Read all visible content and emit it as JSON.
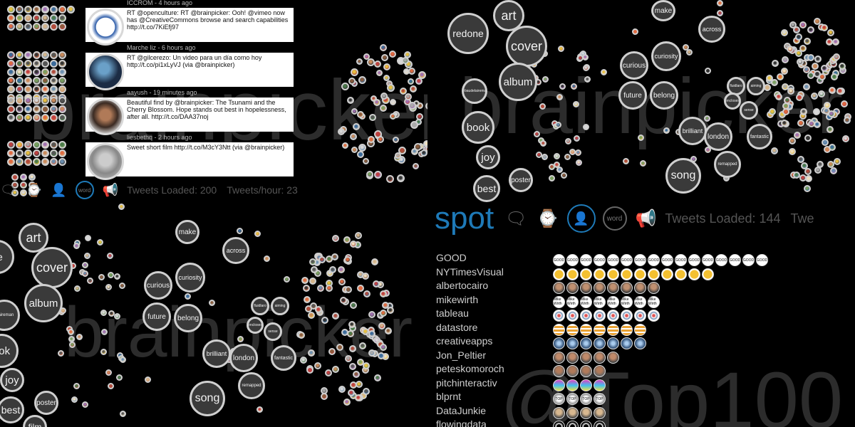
{
  "watermark": {
    "brainpicker": "brainpicker",
    "top100": "@Top100"
  },
  "tweets": [
    {
      "meta": "ICCROM - 4 hours ago",
      "text": "RT @openculture: RT @brainpicker: Ooh! @vimeo now has @CreativeCommons browse and search capabilities http://t.co/7KiEfj97",
      "avatar_label": "ICCROM"
    },
    {
      "meta": "Marche  liz - 6 hours ago",
      "text": "RT @gilcerezo: Un video para un día como hoy http://t.co/pi1xLyVJ (via @brainpicker)",
      "avatar_label": ""
    },
    {
      "meta": "aayush - 19 minutes ago",
      "text": "Beautiful find by @brainpicker: The Tsunami and the Cherry Blossom. Hope stands out best in hopelessness, after all. http://t.co/DAA37noj",
      "avatar_label": ""
    },
    {
      "meta": "liesbethq - 2 hours ago",
      "text": "Sweet short film http://t.co/M3cY3Ntt (via @brainpicker)",
      "avatar_label": ""
    }
  ],
  "toolbar_top": {
    "word": "word",
    "tweets_loaded": "Tweets Loaded: 200",
    "tweets_hour": "Tweets/hour: 23"
  },
  "toolbar_spot": {
    "logo": "spot",
    "word": "word",
    "tweets_loaded": "Tweets Loaded: 144",
    "tweets_hour_partial": "Twe"
  },
  "bubbles": {
    "redone": "redone",
    "art": "art",
    "cover": "cover",
    "album": "album",
    "book": "book",
    "joy": "joy",
    "best": "best",
    "poster": "poster",
    "make": "make",
    "across": "across",
    "curiosity": "curiosity",
    "curious": "curious",
    "future": "future",
    "belong": "belong",
    "fluidly": "fluidlaro",
    "aiming": "aiming",
    "sense": "sense",
    "enclose": "encloses",
    "brilliant": "brilliant",
    "london": "london",
    "fantastic": "fantastic",
    "song": "song",
    "remapped": "remapped",
    "baudelaire": "@baudelaireman",
    "film": "film",
    "bl_he": "he",
    "bl_eleman": "elaireman",
    "bl_ook": "ook"
  },
  "top100_users": [
    "GOOD",
    "NYTimesVisual",
    "albertocairo",
    "mikewirth",
    "tableau",
    "datastore",
    "creativeapps",
    "Jon_Peltier",
    "peteskomoroch",
    "pitchinteractiv",
    "blprnt",
    "DataJunkie",
    "flowingdata"
  ],
  "grid_icon_labels": {
    "good": "GOOD",
    "mike": "Mike Wirth",
    "top": "TOP"
  },
  "grid_counts": [
    16,
    12,
    8,
    8,
    8,
    7,
    7,
    5,
    4,
    4,
    4,
    4,
    4
  ]
}
